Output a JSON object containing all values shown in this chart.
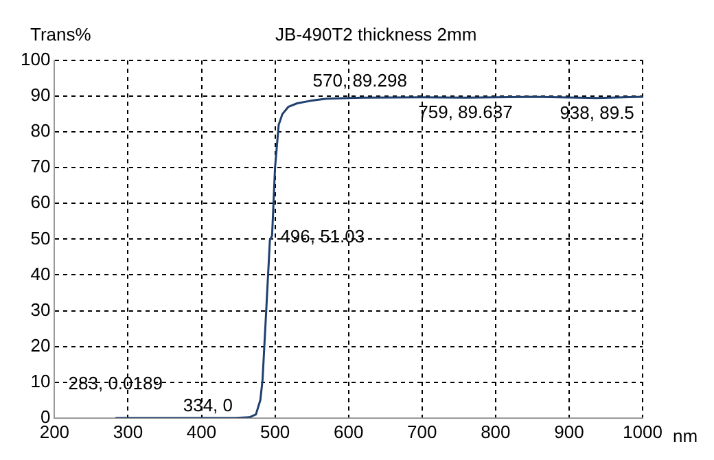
{
  "chart_data": {
    "type": "line",
    "title": "JB-490T2 thickness 2mm",
    "xlabel": "nm",
    "ylabel": "Trans%",
    "x": [
      283,
      334,
      446,
      465,
      474,
      480,
      483,
      488,
      493,
      496,
      500,
      505,
      510,
      518,
      530,
      548,
      570,
      620,
      700,
      759,
      850,
      938,
      1000
    ],
    "series": [
      {
        "color": "#1f3f6f",
        "values": [
          0,
          0,
          0,
          0.2,
          1,
          5,
          10.6,
          30,
          49.7,
          51,
          70,
          82,
          85,
          87,
          88,
          88.7,
          89.3,
          89.6,
          89.7,
          89.6,
          89.8,
          89.5,
          89.8
        ]
      }
    ],
    "xlim": [
      200,
      1000
    ],
    "xticks": [
      200,
      300,
      400,
      500,
      600,
      700,
      800,
      900,
      1000
    ],
    "ylim": [
      0,
      100
    ],
    "yticks": [
      0,
      10,
      20,
      30,
      40,
      50,
      60,
      70,
      80,
      90,
      100
    ],
    "grid": true,
    "legend": false,
    "marker": "none",
    "line_style": "solid",
    "annotations": [
      {
        "text": "283, 0.0189",
        "x": 283,
        "y": 0.0189
      },
      {
        "text": "334, 0",
        "x": 334,
        "y": 0
      },
      {
        "text": "496, 51.03",
        "x": 496,
        "y": 51.03
      },
      {
        "text": "570, 89.298",
        "x": 570,
        "y": 89.298
      },
      {
        "text": "759, 89.637",
        "x": 759,
        "y": 89.637
      },
      {
        "text": "938, 89.5",
        "x": 938,
        "y": 89.5
      }
    ]
  }
}
